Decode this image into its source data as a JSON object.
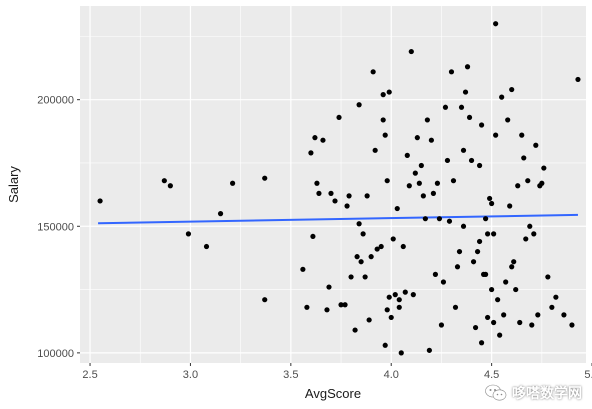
{
  "chart_data": {
    "type": "scatter",
    "xlabel": "AvgScore",
    "ylabel": "Salary",
    "xlim": [
      2.45,
      4.97
    ],
    "ylim": [
      96000,
      237000
    ],
    "x_ticks": [
      2.5,
      3.0,
      3.5,
      4.0,
      4.5,
      5.0
    ],
    "x_tick_labels": [
      "2.5",
      "3.0",
      "3.5",
      "4.0",
      "4.5",
      "5.0"
    ],
    "y_ticks": [
      100000,
      150000,
      200000
    ],
    "y_tick_labels": [
      "100000",
      "150000",
      "200000"
    ],
    "grid": true,
    "background": "#ebebeb",
    "grid_color": "#ffffff",
    "point_color": "#000000",
    "trend": {
      "method": "lm",
      "color": "#3366ff",
      "x": [
        2.54,
        4.93
      ],
      "y": [
        151200,
        154500
      ]
    },
    "points": [
      [
        2.55,
        160000
      ],
      [
        2.87,
        168000
      ],
      [
        2.9,
        166000
      ],
      [
        2.99,
        147000
      ],
      [
        3.08,
        142000
      ],
      [
        3.15,
        155000
      ],
      [
        3.21,
        167000
      ],
      [
        3.37,
        169000
      ],
      [
        3.37,
        121000
      ],
      [
        3.56,
        133000
      ],
      [
        3.58,
        118000
      ],
      [
        3.6,
        179000
      ],
      [
        3.61,
        146000
      ],
      [
        3.62,
        185000
      ],
      [
        3.63,
        167000
      ],
      [
        3.64,
        163000
      ],
      [
        3.66,
        184000
      ],
      [
        3.68,
        117000
      ],
      [
        3.69,
        126000
      ],
      [
        3.7,
        163000
      ],
      [
        3.72,
        160000
      ],
      [
        3.74,
        193000
      ],
      [
        3.75,
        119000
      ],
      [
        3.77,
        119000
      ],
      [
        3.78,
        158000
      ],
      [
        3.79,
        162000
      ],
      [
        3.8,
        130000
      ],
      [
        3.82,
        109000
      ],
      [
        3.83,
        138000
      ],
      [
        3.84,
        198000
      ],
      [
        3.84,
        151000
      ],
      [
        3.85,
        136000
      ],
      [
        3.86,
        147000
      ],
      [
        3.87,
        130000
      ],
      [
        3.88,
        162000
      ],
      [
        3.89,
        113000
      ],
      [
        3.9,
        138000
      ],
      [
        3.91,
        211000
      ],
      [
        3.92,
        180000
      ],
      [
        3.93,
        141000
      ],
      [
        3.95,
        142000
      ],
      [
        3.96,
        202000
      ],
      [
        3.96,
        192000
      ],
      [
        3.97,
        186000
      ],
      [
        3.97,
        103000
      ],
      [
        3.98,
        117000
      ],
      [
        3.98,
        168000
      ],
      [
        3.99,
        122000
      ],
      [
        3.99,
        203000
      ],
      [
        4.0,
        114000
      ],
      [
        4.01,
        145000
      ],
      [
        4.02,
        123000
      ],
      [
        4.03,
        157000
      ],
      [
        4.04,
        118000
      ],
      [
        4.04,
        121000
      ],
      [
        4.05,
        100000
      ],
      [
        4.06,
        142000
      ],
      [
        4.07,
        124000
      ],
      [
        4.08,
        178000
      ],
      [
        4.09,
        166000
      ],
      [
        4.1,
        219000
      ],
      [
        4.11,
        123000
      ],
      [
        4.12,
        171000
      ],
      [
        4.13,
        185000
      ],
      [
        4.14,
        167000
      ],
      [
        4.15,
        174000
      ],
      [
        4.16,
        162000
      ],
      [
        4.17,
        153000
      ],
      [
        4.18,
        192000
      ],
      [
        4.19,
        101000
      ],
      [
        4.2,
        184000
      ],
      [
        4.21,
        163000
      ],
      [
        4.22,
        131000
      ],
      [
        4.23,
        167000
      ],
      [
        4.24,
        153000
      ],
      [
        4.25,
        111000
      ],
      [
        4.26,
        128000
      ],
      [
        4.27,
        197000
      ],
      [
        4.28,
        176000
      ],
      [
        4.29,
        152000
      ],
      [
        4.3,
        211000
      ],
      [
        4.31,
        168000
      ],
      [
        4.32,
        118000
      ],
      [
        4.33,
        134000
      ],
      [
        4.34,
        140000
      ],
      [
        4.35,
        197000
      ],
      [
        4.36,
        180000
      ],
      [
        4.37,
        203000
      ],
      [
        4.38,
        213000
      ],
      [
        4.39,
        193000
      ],
      [
        4.4,
        176000
      ],
      [
        4.41,
        136000
      ],
      [
        4.42,
        110000
      ],
      [
        4.43,
        140000
      ],
      [
        4.44,
        174000
      ],
      [
        4.45,
        190000
      ],
      [
        4.45,
        104000
      ],
      [
        4.46,
        131000
      ],
      [
        4.47,
        153000
      ],
      [
        4.48,
        147000
      ],
      [
        4.48,
        114000
      ],
      [
        4.49,
        161000
      ],
      [
        4.5,
        125000
      ],
      [
        4.5,
        159000
      ],
      [
        4.51,
        147000
      ],
      [
        4.52,
        186000
      ],
      [
        4.53,
        121000
      ],
      [
        4.54,
        107000
      ],
      [
        4.55,
        201000
      ],
      [
        4.56,
        115000
      ],
      [
        4.57,
        128000
      ],
      [
        4.58,
        192000
      ],
      [
        4.59,
        158000
      ],
      [
        4.6,
        134000
      ],
      [
        4.6,
        204000
      ],
      [
        4.61,
        136000
      ],
      [
        4.62,
        125000
      ],
      [
        4.63,
        166000
      ],
      [
        4.64,
        112000
      ],
      [
        4.65,
        186000
      ],
      [
        4.66,
        177000
      ],
      [
        4.67,
        145000
      ],
      [
        4.68,
        168000
      ],
      [
        4.69,
        150000
      ],
      [
        4.7,
        111000
      ],
      [
        4.71,
        147000
      ],
      [
        4.72,
        182000
      ],
      [
        4.73,
        115000
      ],
      [
        4.74,
        166000
      ],
      [
        4.75,
        167000
      ],
      [
        4.76,
        173000
      ],
      [
        4.78,
        130000
      ],
      [
        4.8,
        118000
      ],
      [
        4.82,
        122000
      ],
      [
        4.86,
        115000
      ],
      [
        4.9,
        111000
      ],
      [
        4.93,
        208000
      ],
      [
        4.52,
        230000
      ],
      [
        4.36,
        150000
      ],
      [
        4.51,
        112000
      ],
      [
        4.44,
        144000
      ],
      [
        4.47,
        131000
      ]
    ]
  },
  "watermark": {
    "text": "哆嗒数学网",
    "icon": "wechat-icon"
  }
}
